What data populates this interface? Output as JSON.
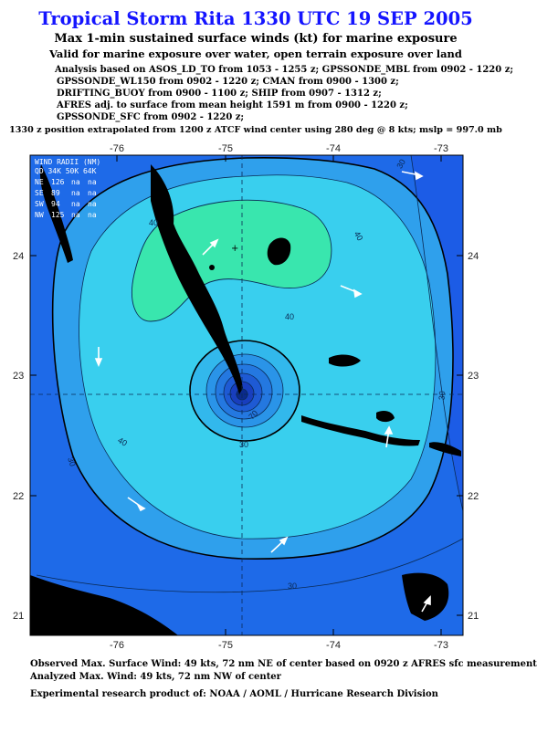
{
  "header": {
    "title": "Tropical Storm Rita 1330 UTC 19 SEP 2005",
    "subtitle": "Max 1-min sustained surface winds (kt) for marine exposure",
    "subtitle2": "Valid for marine exposure over water, open terrain exposure over land"
  },
  "analysis_lines": [
    "Analysis based on  ASOS_LD_TO from 1053 - 1255 z;  GPSSONDE_MBL from 0902 - 1220 z;",
    "GPSSONDE_WL150 from 0902 - 1220 z;  CMAN from 0900 - 1300 z;",
    "DRIFTING_BUOY from 0900 - 1100 z;  SHIP from 0907 - 1312 z;",
    "AFRES adj. to surface from mean height 1591 m from 0900 - 1220 z;",
    "GPSSONDE_SFC from 0902 - 1220 z;"
  ],
  "position_note": "1330 z position extrapolated from 1200 z ATCF wind center using 280 deg @ 8 kts; mslp = 997.0 mb",
  "map": {
    "lon_ticks": [
      "-76",
      "-75",
      "-74",
      "-73"
    ],
    "lat_ticks": [
      "24",
      "23",
      "22",
      "21"
    ],
    "contour_labels": [
      "30",
      "30",
      "30",
      "30",
      "40",
      "40",
      "40",
      "40",
      "30",
      "70"
    ],
    "colors": {
      "outer": "#1c5ce6",
      "c30": "#2fa0ec",
      "c40": "#39cfee",
      "c50": "#39e6ae",
      "ring": "#2a6ad0",
      "core": "#0b2a8c",
      "land": "#000000",
      "title": "#1414ff"
    }
  },
  "wind_radii": {
    "header": "WIND RADII (NM)",
    "cols": "QD 34K 50K 64K",
    "rows": [
      {
        "q": "NE",
        "r34": "126",
        "r50": "na",
        "r64": "na"
      },
      {
        "q": "SE",
        "r34": "89",
        "r50": "na",
        "r64": "na"
      },
      {
        "q": "SW",
        "r34": "94",
        "r50": "na",
        "r64": "na"
      },
      {
        "q": "NW",
        "r34": "125",
        "r50": "na",
        "r64": "na"
      }
    ]
  },
  "footer": {
    "observed": "Observed Max. Surface Wind: 49 kts, 72 nm NE of center based on 0920 z AFRES sfc measurement",
    "analyzed": "Analyzed Max. Wind: 49 kts, 72 nm NW of center",
    "credit": "Experimental research product of:  NOAA / AOML / Hurricane Research Division"
  }
}
